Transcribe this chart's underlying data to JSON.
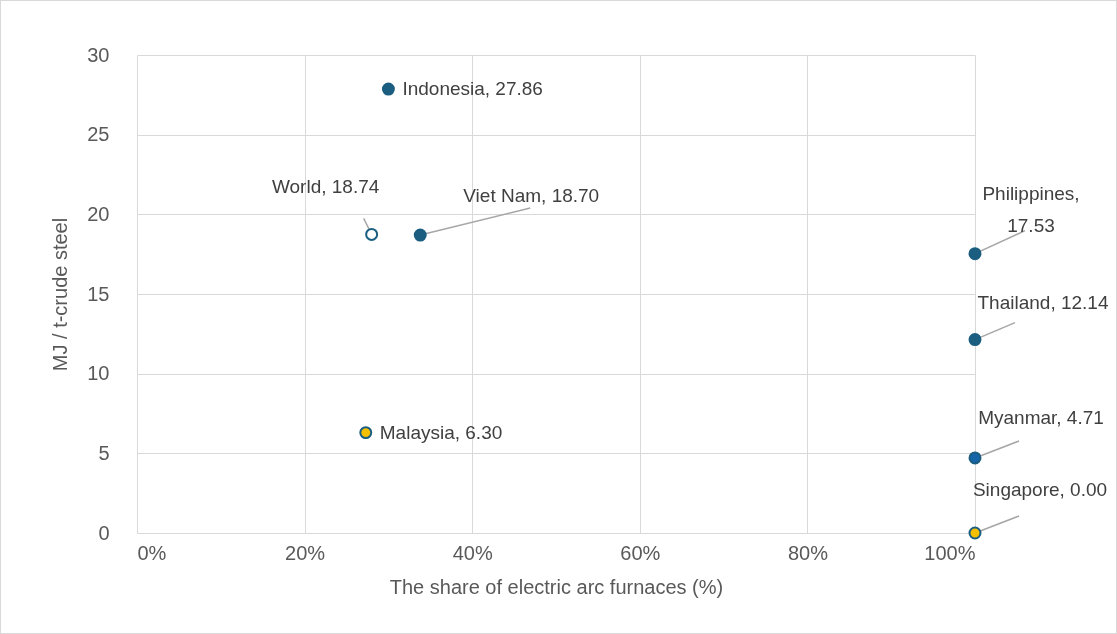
{
  "chart_data": {
    "type": "scatter",
    "xlabel": "The share of electric arc furnaces (%)",
    "ylabel": "MJ / t-crude steel",
    "xlim": [
      0,
      100
    ],
    "xticks": [
      {
        "value": 0,
        "label": "0%"
      },
      {
        "value": 20,
        "label": "20%"
      },
      {
        "value": 40,
        "label": "40%"
      },
      {
        "value": 60,
        "label": "60%"
      },
      {
        "value": 80,
        "label": "80%"
      },
      {
        "value": 100,
        "label": "100%"
      }
    ],
    "ylim": [
      0,
      30
    ],
    "yticks": [
      0,
      5,
      10,
      15,
      20,
      25,
      30
    ],
    "grid": true,
    "marker": "circle",
    "series": [
      {
        "color": "#1b5e80",
        "x": [
          30
        ],
        "values": [
          27.86
        ],
        "value_labels": [
          "Indonesia, 27.86"
        ]
      },
      {
        "color": "#ffffff",
        "x": [
          28
        ],
        "values": [
          18.74
        ],
        "value_labels": [
          "World, 18.74"
        ]
      },
      {
        "color": "#1b5e80",
        "x": [
          33.8
        ],
        "values": [
          18.7
        ],
        "value_labels": [
          "Viet Nam, 18.70"
        ]
      },
      {
        "color": "#1b5e80",
        "x": [
          100
        ],
        "values": [
          17.53
        ],
        "value_labels": [
          "Philippines, 17.53"
        ]
      },
      {
        "color": "#1b5e80",
        "x": [
          100
        ],
        "values": [
          12.14
        ],
        "value_labels": [
          "Thailand, 12.14"
        ]
      },
      {
        "color": "#f5c000",
        "x": [
          27.3
        ],
        "values": [
          6.3
        ],
        "value_labels": [
          "Malaysia, 6.30"
        ]
      },
      {
        "color": "#1565a8",
        "x": [
          100
        ],
        "values": [
          4.71
        ],
        "value_labels": [
          "Myanmar, 4.71"
        ]
      },
      {
        "color": "#f5c000",
        "x": [
          100
        ],
        "values": [
          0
        ],
        "value_labels": [
          "Singapore, 0.00"
        ]
      }
    ]
  }
}
